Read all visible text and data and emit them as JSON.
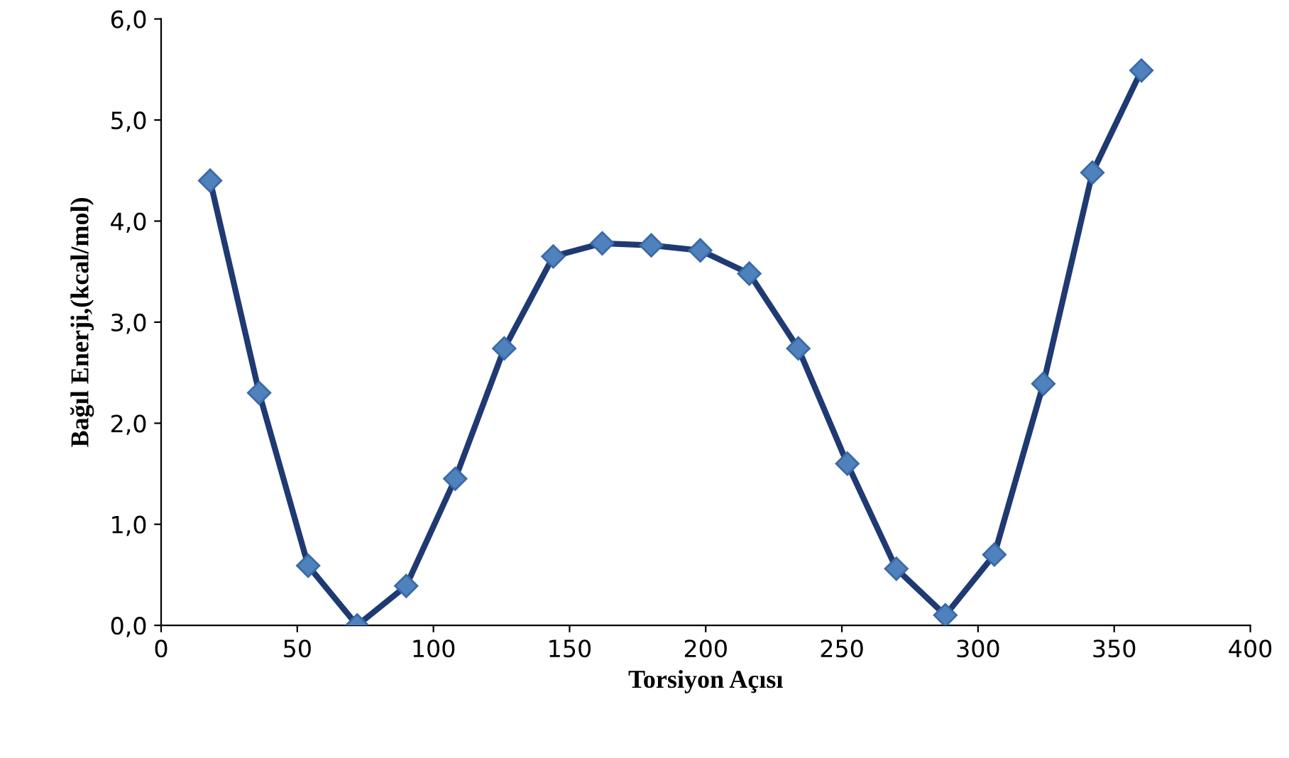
{
  "chart_data": {
    "type": "line",
    "xlabel": "Torsiyon Açısı",
    "ylabel": "Bağıl Enerji,(kcal/mol)",
    "x": [
      18,
      36,
      54,
      72,
      90,
      108,
      126,
      144,
      162,
      180,
      198,
      216,
      234,
      252,
      270,
      288,
      306,
      324,
      342,
      360
    ],
    "series": [
      {
        "color": "#1f3a73",
        "values": [
          4.4,
          2.3,
          0.59,
          0.0,
          0.39,
          1.45,
          2.74,
          3.65,
          3.78,
          3.76,
          3.71,
          3.48,
          2.74,
          1.6,
          0.56,
          0.1,
          0.7,
          2.39,
          4.48,
          5.49
        ]
      }
    ],
    "marker": "diamond",
    "line_style": "solid",
    "grid": false,
    "xlim": [
      0,
      400
    ],
    "xticks": [
      0,
      50,
      100,
      150,
      200,
      250,
      300,
      350,
      400
    ],
    "ylim": [
      0,
      6
    ],
    "yticks": [
      {
        "value": 0,
        "label": "0,0"
      },
      {
        "value": 1,
        "label": "1,0"
      },
      {
        "value": 2,
        "label": "2,0"
      },
      {
        "value": 3,
        "label": "3,0"
      },
      {
        "value": 4,
        "label": "4,0"
      },
      {
        "value": 5,
        "label": "5,0"
      },
      {
        "value": 6,
        "label": "6,0"
      }
    ]
  }
}
